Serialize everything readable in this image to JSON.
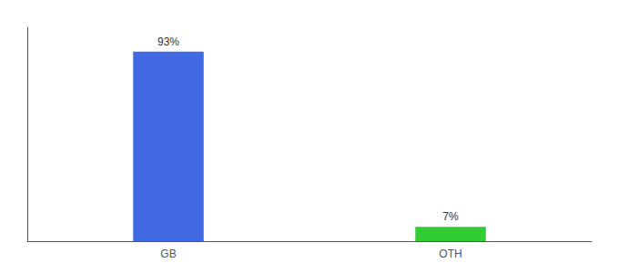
{
  "chart_data": {
    "type": "bar",
    "categories": [
      "GB",
      "OTH"
    ],
    "values": [
      93,
      7
    ],
    "value_labels": [
      "93%",
      "7%"
    ],
    "colors": [
      "#4169e1",
      "#33cc33"
    ],
    "ylim": [
      0,
      105
    ],
    "data_labels": true,
    "tick_labels": "x",
    "grid": false
  }
}
